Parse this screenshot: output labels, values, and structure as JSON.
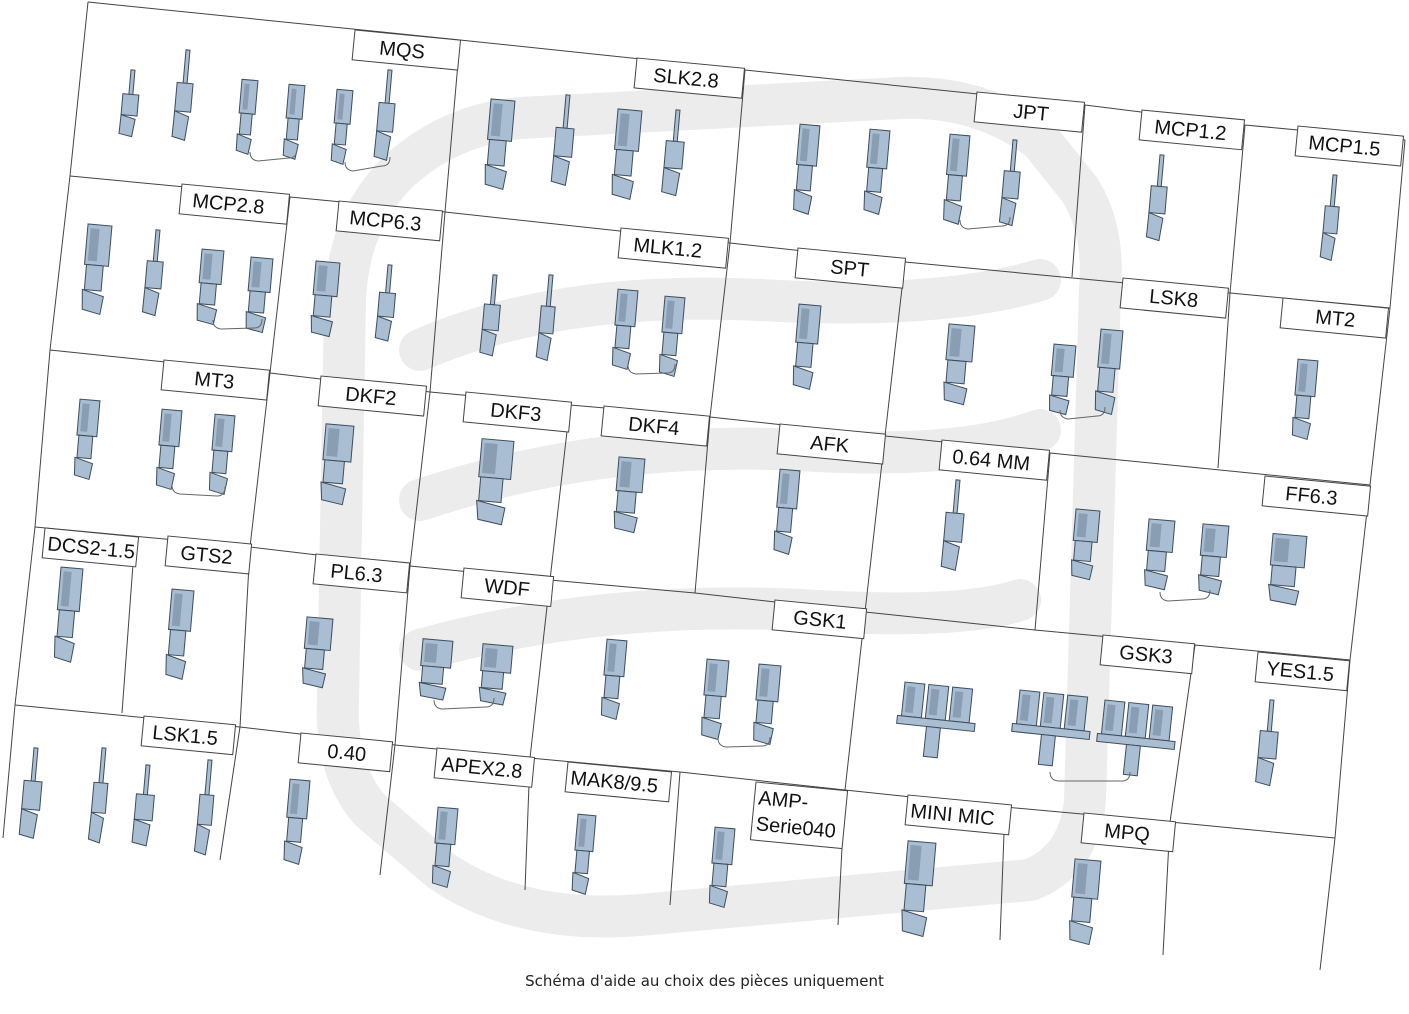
{
  "labels": {
    "mqs": "MQS",
    "slk28": "SLK2.8",
    "jpt": "JPT",
    "mcp12": "MCP1.2",
    "mcp15": "MCP1.5",
    "mcp28": "MCP2.8",
    "mcp63": "MCP6.3",
    "mlk12": "MLK1.2",
    "spt": "SPT",
    "lsk8": "LSK8",
    "mt2": "MT2",
    "mt3": "MT3",
    "dkf2": "DKF2",
    "dkf3": "DKF3",
    "dkf4": "DKF4",
    "afk": "AFK",
    "mm064": "0.64 MM",
    "ff63": "FF6.3",
    "dcs215": "DCS2-1.5",
    "gts2": "GTS2",
    "pl63": "PL6.3",
    "wdf": "WDF",
    "gsk1": "GSK1",
    "gsk3": "GSK3",
    "yes15": "YES1.5",
    "lsk15": "LSK1.5",
    "p040": "0.40",
    "apex28": "APEX2.8",
    "mak895": "MAK8/9.5",
    "amp_line1": "AMP-",
    "amp_line2": "Serie040",
    "minimic": "MINI MIC",
    "mpq": "MPQ"
  },
  "caption": "Schéma d'aide au choix des pièces uniquement",
  "colors": {
    "part_fill": "#a9bed3",
    "part_dark": "#6f8497",
    "part_outline": "#3e4d5c",
    "grid": "#444444",
    "watermark": "#ececec"
  }
}
